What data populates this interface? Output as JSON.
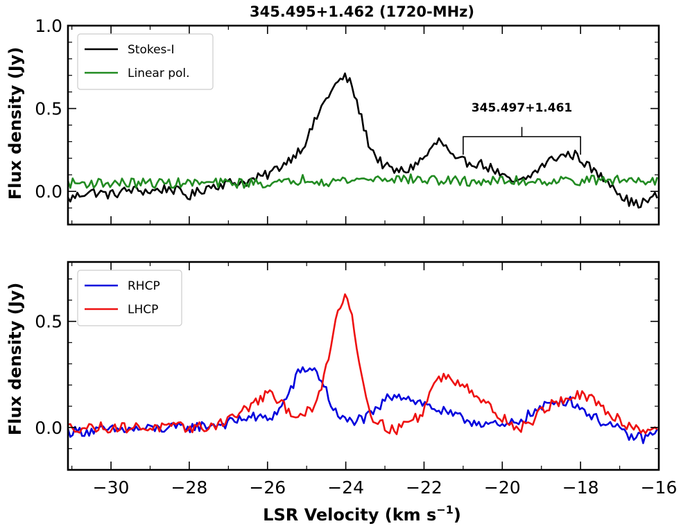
{
  "chart_data": [
    {
      "type": "line",
      "title": "345.495+1.462 (1720-MHz)",
      "ylabel": "Flux density (Jy)",
      "xlim": [
        -31.1,
        -16.0
      ],
      "ylim": [
        -0.2,
        1.0
      ],
      "yticks": [
        0.0,
        0.5,
        1.0
      ],
      "ytick_labels": [
        "0.0",
        "0.5",
        "1.0"
      ],
      "legend": {
        "position": "top-left"
      },
      "annotation": {
        "text": "345.497+1.461",
        "x_range": [
          -21.0,
          -18.0
        ],
        "y": 0.33
      },
      "series": [
        {
          "name": "Stokes-I",
          "color": "#000000",
          "anchors": [
            [
              -31.1,
              -0.05
            ],
            [
              -30.6,
              0.0
            ],
            [
              -30.0,
              -0.02
            ],
            [
              -29.5,
              0.01
            ],
            [
              -29.0,
              0.0
            ],
            [
              -28.5,
              0.02
            ],
            [
              -28.0,
              -0.03
            ],
            [
              -27.5,
              0.03
            ],
            [
              -27.0,
              0.05
            ],
            [
              -26.5,
              0.06
            ],
            [
              -26.0,
              0.1
            ],
            [
              -25.5,
              0.18
            ],
            [
              -25.1,
              0.27
            ],
            [
              -24.9,
              0.36
            ],
            [
              -24.7,
              0.47
            ],
            [
              -24.5,
              0.56
            ],
            [
              -24.3,
              0.63
            ],
            [
              -24.1,
              0.68
            ],
            [
              -24.0,
              0.69
            ],
            [
              -23.85,
              0.64
            ],
            [
              -23.6,
              0.44
            ],
            [
              -23.4,
              0.28
            ],
            [
              -23.2,
              0.2
            ],
            [
              -23.0,
              0.15
            ],
            [
              -22.7,
              0.12
            ],
            [
              -22.4,
              0.13
            ],
            [
              -22.2,
              0.17
            ],
            [
              -22.0,
              0.2
            ],
            [
              -21.8,
              0.26
            ],
            [
              -21.6,
              0.31
            ],
            [
              -21.4,
              0.25
            ],
            [
              -21.2,
              0.18
            ],
            [
              -21.0,
              0.18
            ],
            [
              -20.6,
              0.17
            ],
            [
              -20.2,
              0.13
            ],
            [
              -19.9,
              0.07
            ],
            [
              -19.6,
              0.05
            ],
            [
              -19.3,
              0.09
            ],
            [
              -19.0,
              0.15
            ],
            [
              -18.7,
              0.2
            ],
            [
              -18.4,
              0.22
            ],
            [
              -18.1,
              0.22
            ],
            [
              -17.8,
              0.15
            ],
            [
              -17.5,
              0.09
            ],
            [
              -17.2,
              0.05
            ],
            [
              -16.9,
              -0.04
            ],
            [
              -16.6,
              -0.08
            ],
            [
              -16.3,
              -0.06
            ],
            [
              -16.0,
              -0.02
            ]
          ],
          "noise": 0.03
        },
        {
          "name": "Linear pol.",
          "color": "#228b22",
          "anchors": [
            [
              -31.1,
              0.05
            ],
            [
              -25.5,
              0.05
            ],
            [
              -25.0,
              0.08
            ],
            [
              -24.5,
              0.06
            ],
            [
              -23.0,
              0.08
            ],
            [
              -21.0,
              0.06
            ],
            [
              -16.0,
              0.07
            ]
          ],
          "noise": 0.03
        }
      ]
    },
    {
      "type": "line",
      "xlabel": "LSR Velocity (km s",
      "xlabel_sup": "−1",
      "xlabel_end": ")",
      "ylabel": "Flux density (Jy)",
      "xlim": [
        -31.1,
        -16.0
      ],
      "ylim": [
        -0.2,
        0.78
      ],
      "xticks": [
        -30,
        -28,
        -26,
        -24,
        -22,
        -20,
        -18,
        -16
      ],
      "xtick_labels": [
        "−30",
        "−28",
        "−26",
        "−24",
        "−22",
        "−20",
        "−18",
        "−16"
      ],
      "yticks": [
        0.0,
        0.5
      ],
      "ytick_labels": [
        "0.0",
        "0.5"
      ],
      "legend": {
        "position": "top-left"
      },
      "series": [
        {
          "name": "RHCP",
          "color": "#0000dd",
          "anchors": [
            [
              -31.1,
              -0.02
            ],
            [
              -28.0,
              0.0
            ],
            [
              -27.0,
              0.02
            ],
            [
              -26.5,
              0.05
            ],
            [
              -26.0,
              0.04
            ],
            [
              -25.7,
              0.08
            ],
            [
              -25.4,
              0.18
            ],
            [
              -25.2,
              0.26
            ],
            [
              -25.0,
              0.28
            ],
            [
              -24.8,
              0.27
            ],
            [
              -24.6,
              0.22
            ],
            [
              -24.4,
              0.12
            ],
            [
              -24.2,
              0.05
            ],
            [
              -24.0,
              0.03
            ],
            [
              -23.5,
              0.04
            ],
            [
              -23.2,
              0.08
            ],
            [
              -23.0,
              0.13
            ],
            [
              -22.7,
              0.16
            ],
            [
              -22.4,
              0.14
            ],
            [
              -22.0,
              0.11
            ],
            [
              -21.6,
              0.08
            ],
            [
              -21.2,
              0.05
            ],
            [
              -20.8,
              0.03
            ],
            [
              -20.4,
              0.02
            ],
            [
              -20.0,
              0.0
            ],
            [
              -19.6,
              0.03
            ],
            [
              -19.2,
              0.07
            ],
            [
              -18.8,
              0.11
            ],
            [
              -18.5,
              0.13
            ],
            [
              -18.2,
              0.12
            ],
            [
              -17.9,
              0.08
            ],
            [
              -17.6,
              0.04
            ],
            [
              -17.2,
              0.01
            ],
            [
              -16.8,
              -0.04
            ],
            [
              -16.4,
              -0.05
            ],
            [
              -16.0,
              -0.02
            ]
          ],
          "noise": 0.025
        },
        {
          "name": "LHCP",
          "color": "#ee1111",
          "anchors": [
            [
              -31.1,
              0.0
            ],
            [
              -27.5,
              0.0
            ],
            [
              -27.0,
              0.04
            ],
            [
              -26.6,
              0.08
            ],
            [
              -26.3,
              0.12
            ],
            [
              -26.0,
              0.16
            ],
            [
              -25.7,
              0.12
            ],
            [
              -25.4,
              0.07
            ],
            [
              -25.1,
              0.06
            ],
            [
              -24.8,
              0.09
            ],
            [
              -24.6,
              0.2
            ],
            [
              -24.4,
              0.38
            ],
            [
              -24.2,
              0.55
            ],
            [
              -24.0,
              0.63
            ],
            [
              -23.85,
              0.55
            ],
            [
              -23.7,
              0.36
            ],
            [
              -23.5,
              0.15
            ],
            [
              -23.3,
              0.05
            ],
            [
              -23.0,
              0.0
            ],
            [
              -22.7,
              -0.01
            ],
            [
              -22.4,
              0.03
            ],
            [
              -22.1,
              0.05
            ],
            [
              -21.9,
              0.14
            ],
            [
              -21.7,
              0.22
            ],
            [
              -21.5,
              0.24
            ],
            [
              -21.2,
              0.22
            ],
            [
              -20.9,
              0.2
            ],
            [
              -20.6,
              0.14
            ],
            [
              -20.3,
              0.09
            ],
            [
              -20.0,
              0.05
            ],
            [
              -19.6,
              -0.01
            ],
            [
              -19.3,
              0.02
            ],
            [
              -19.0,
              0.08
            ],
            [
              -18.6,
              0.12
            ],
            [
              -18.3,
              0.14
            ],
            [
              -18.0,
              0.15
            ],
            [
              -17.7,
              0.13
            ],
            [
              -17.4,
              0.08
            ],
            [
              -17.1,
              0.05
            ],
            [
              -16.8,
              0.01
            ],
            [
              -16.4,
              -0.01
            ],
            [
              -16.0,
              0.0
            ]
          ],
          "noise": 0.025
        }
      ]
    }
  ]
}
